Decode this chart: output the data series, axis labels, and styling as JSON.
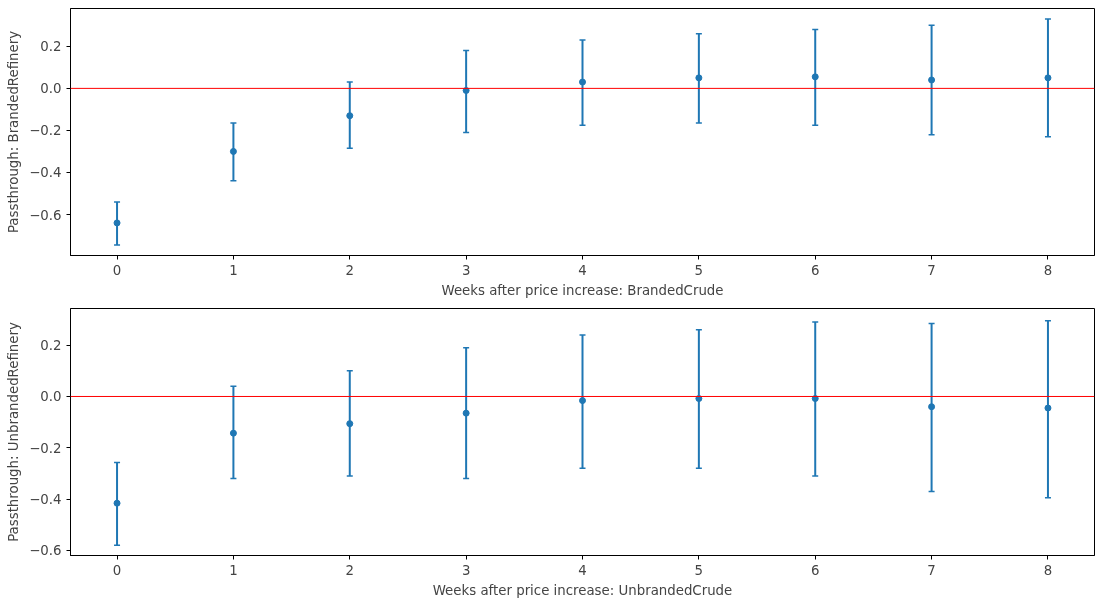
{
  "chart_data": [
    {
      "type": "scatter",
      "xlabel": "Weeks after price increase: BrandedCrude",
      "ylabel": "Passthrough: BrandedRefinery",
      "x": [
        0,
        1,
        2,
        3,
        4,
        5,
        6,
        7,
        8
      ],
      "series": [
        {
          "color": "#1f77b4",
          "values": [
            -0.64,
            -0.3,
            -0.13,
            -0.01,
            0.03,
            0.05,
            0.055,
            0.04,
            0.05
          ],
          "errors": [
            [
              -0.745,
              -0.54
            ],
            [
              -0.44,
              -0.165
            ],
            [
              -0.285,
              0.03
            ],
            [
              -0.21,
              0.18
            ],
            [
              -0.175,
              0.23
            ],
            [
              -0.165,
              0.26
            ],
            [
              -0.175,
              0.28
            ],
            [
              -0.22,
              0.3
            ],
            [
              -0.23,
              0.33
            ]
          ]
        }
      ],
      "xlim": [
        -0.4,
        8.4
      ],
      "xticks": [
        0,
        1,
        2,
        3,
        4,
        5,
        6,
        7,
        8
      ],
      "ylim": [
        -0.795,
        0.38
      ],
      "yticks": [
        {
          "value": -0.6,
          "label": "−0.6"
        },
        {
          "value": -0.4,
          "label": "−0.4"
        },
        {
          "value": -0.2,
          "label": "−0.2"
        },
        {
          "value": 0,
          "label": "0.0"
        },
        {
          "value": 0.2,
          "label": "0.2"
        }
      ],
      "ref_lines": [
        {
          "axis": "y",
          "value": 0,
          "color": "#ff0000"
        }
      ],
      "marker": "circle",
      "grid": false
    },
    {
      "type": "scatter",
      "xlabel": "Weeks after price increase: UnbrandedCrude",
      "ylabel": "Passthrough: UnbrandedRefinery",
      "x": [
        0,
        1,
        2,
        3,
        4,
        5,
        6,
        7,
        8
      ],
      "series": [
        {
          "color": "#1f77b4",
          "values": [
            -0.416,
            -0.143,
            -0.106,
            -0.065,
            -0.016,
            -0.008,
            -0.008,
            -0.04,
            -0.045
          ],
          "errors": [
            [
              -0.58,
              -0.257
            ],
            [
              -0.32,
              0.04
            ],
            [
              -0.31,
              0.1
            ],
            [
              -0.32,
              0.19
            ],
            [
              -0.28,
              0.24
            ],
            [
              -0.28,
              0.26
            ],
            [
              -0.31,
              0.29
            ],
            [
              -0.37,
              0.285
            ],
            [
              -0.395,
              0.295
            ]
          ]
        }
      ],
      "xlim": [
        -0.4,
        8.4
      ],
      "xticks": [
        0,
        1,
        2,
        3,
        4,
        5,
        6,
        7,
        8
      ],
      "ylim": [
        -0.62,
        0.343
      ],
      "yticks": [
        {
          "value": -0.6,
          "label": "−0.6"
        },
        {
          "value": -0.4,
          "label": "−0.4"
        },
        {
          "value": -0.2,
          "label": "−0.2"
        },
        {
          "value": 0,
          "label": "0.0"
        },
        {
          "value": 0.2,
          "label": "0.2"
        }
      ],
      "ref_lines": [
        {
          "axis": "y",
          "value": 0,
          "color": "#ff0000"
        }
      ],
      "marker": "circle",
      "grid": false
    }
  ]
}
